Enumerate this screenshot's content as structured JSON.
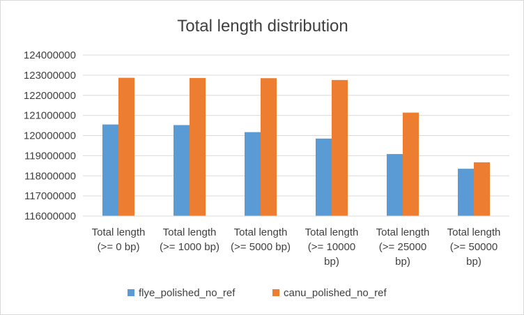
{
  "chart_data": {
    "type": "bar",
    "title": "Total length distribution",
    "xlabel": "",
    "ylabel": "",
    "categories": [
      [
        "Total length",
        "(>= 0 bp)"
      ],
      [
        "Total length",
        "(>= 1000 bp)"
      ],
      [
        "Total length",
        "(>= 5000 bp)"
      ],
      [
        "Total length",
        "(>= 10000",
        "bp)"
      ],
      [
        "Total length",
        "(>= 25000",
        "bp)"
      ],
      [
        "Total length",
        "(>= 50000",
        "bp)"
      ]
    ],
    "series": [
      {
        "name": "flye_polished_no_ref",
        "color": "#5b9bd5",
        "values": [
          120550000,
          120520000,
          120170000,
          119850000,
          119080000,
          118350000
        ]
      },
      {
        "name": "canu_polished_no_ref",
        "color": "#ed7d31",
        "values": [
          122870000,
          122860000,
          122850000,
          122760000,
          121140000,
          118670000
        ]
      }
    ],
    "ylim": [
      116000000,
      124000000
    ],
    "yticks": [
      "116000000",
      "117000000",
      "118000000",
      "119000000",
      "120000000",
      "121000000",
      "122000000",
      "123000000",
      "124000000"
    ],
    "grid": true,
    "legend_position": "bottom",
    "colors": {
      "grid": "#d9d9d9",
      "axis": "#d9d9d9",
      "text": "#404040"
    }
  }
}
